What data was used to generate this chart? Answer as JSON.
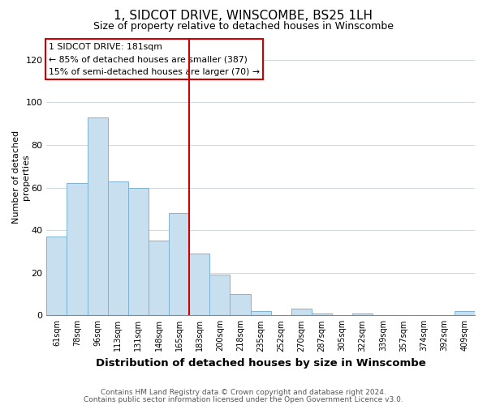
{
  "title": "1, SIDCOT DRIVE, WINSCOMBE, BS25 1LH",
  "subtitle": "Size of property relative to detached houses in Winscombe",
  "xlabel": "Distribution of detached houses by size in Winscombe",
  "ylabel": "Number of detached\nproperties",
  "bar_color": "#c8dff0",
  "bar_edge_color": "#7fb3d3",
  "categories": [
    "61sqm",
    "78sqm",
    "96sqm",
    "113sqm",
    "131sqm",
    "148sqm",
    "165sqm",
    "183sqm",
    "200sqm",
    "218sqm",
    "235sqm",
    "252sqm",
    "270sqm",
    "287sqm",
    "305sqm",
    "322sqm",
    "339sqm",
    "357sqm",
    "374sqm",
    "392sqm",
    "409sqm"
  ],
  "values": [
    37,
    62,
    93,
    63,
    60,
    35,
    48,
    29,
    19,
    10,
    2,
    0,
    3,
    1,
    0,
    1,
    0,
    0,
    0,
    0,
    2
  ],
  "ylim": [
    0,
    130
  ],
  "yticks": [
    0,
    20,
    40,
    60,
    80,
    100,
    120
  ],
  "vline_index": 7,
  "vline_color": "#cc0000",
  "annotation_line1": "1 SIDCOT DRIVE: 181sqm",
  "annotation_line2": "← 85% of detached houses are smaller (387)",
  "annotation_line3": "15% of semi-detached houses are larger (70) →",
  "footnote1": "Contains HM Land Registry data © Crown copyright and database right 2024.",
  "footnote2": "Contains public sector information licensed under the Open Government Licence v3.0.",
  "bg_color": "#ffffff",
  "grid_color": "#d0d8e0"
}
